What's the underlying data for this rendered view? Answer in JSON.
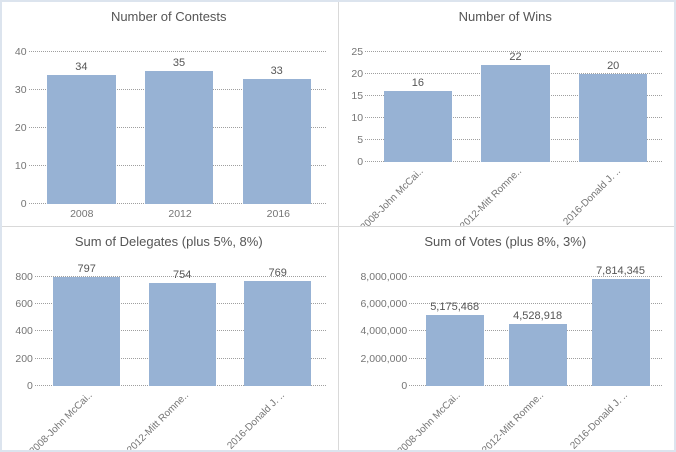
{
  "dashboard": {
    "panel_count": 4,
    "layout": "2x2 small multiples"
  },
  "colors": {
    "bar_fill": "#97b2d4",
    "gridline": "#9f9f9f",
    "panel_divider": "#d9d9d9",
    "outer_border": "#dce4ee",
    "title_text": "#555555",
    "tick_text": "#757575",
    "value_label_text": "#555555",
    "background": "#ffffff"
  },
  "chart_data": [
    {
      "type": "bar",
      "title": "Number of Contests",
      "categories": [
        "2008",
        "2012",
        "2016"
      ],
      "values": [
        34,
        35,
        33
      ],
      "value_labels": [
        "34",
        "35",
        "33"
      ],
      "ylim": [
        0,
        40
      ],
      "yticks": [
        0,
        10,
        20,
        30,
        40
      ],
      "ytick_labels": [
        "0",
        "10",
        "20",
        "30",
        "40"
      ],
      "rotated_x_labels": false,
      "grid": "dotted",
      "legend": "none"
    },
    {
      "type": "bar",
      "title": "Number of Wins",
      "categories": [
        "2008-John McCai..",
        "2012-Mitt Romne..",
        "2016-Donald J. .."
      ],
      "values": [
        16,
        22,
        20
      ],
      "value_labels": [
        "16",
        "22",
        "20"
      ],
      "ylim": [
        0,
        25
      ],
      "yticks": [
        0,
        5,
        10,
        15,
        20,
        25
      ],
      "ytick_labels": [
        "0",
        "5",
        "10",
        "15",
        "20",
        "25"
      ],
      "rotated_x_labels": true,
      "grid": "dotted",
      "legend": "none"
    },
    {
      "type": "bar",
      "title": "Sum of Delegates (plus 5%, 8%)",
      "categories": [
        "2008-John McCai..",
        "2012-Mitt Romne..",
        "2016-Donald J. .."
      ],
      "values": [
        797,
        754,
        769
      ],
      "value_labels": [
        "797",
        "754",
        "769"
      ],
      "ylim": [
        0,
        800
      ],
      "yticks": [
        0,
        200,
        400,
        600,
        800
      ],
      "ytick_labels": [
        "0",
        "200",
        "400",
        "600",
        "800"
      ],
      "rotated_x_labels": true,
      "grid": "dotted",
      "legend": "none"
    },
    {
      "type": "bar",
      "title": "Sum of Votes (plus 8%, 3%)",
      "categories": [
        "2008-John McCai..",
        "2012-Mitt Romne..",
        "2016-Donald J. .."
      ],
      "values": [
        5175468,
        4528918,
        7814345
      ],
      "value_labels": [
        "5,175,468",
        "4,528,918",
        "7,814,345"
      ],
      "ylim": [
        0,
        8000000
      ],
      "yticks": [
        0,
        2000000,
        4000000,
        6000000,
        8000000
      ],
      "ytick_labels": [
        "0",
        "2,000,000",
        "4,000,000",
        "6,000,000",
        "8,000,000"
      ],
      "rotated_x_labels": true,
      "grid": "dotted",
      "legend": "none"
    }
  ]
}
